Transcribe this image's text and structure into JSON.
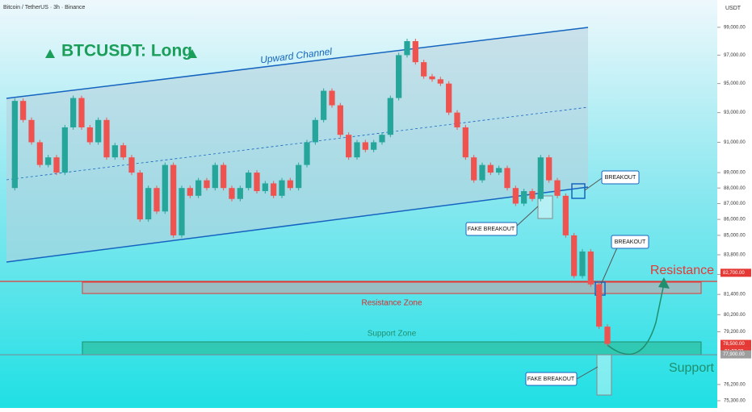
{
  "chart_data": {
    "type": "candle",
    "header": "Bitcoin / TetherUS · 3h · Binance",
    "currency": "USDT",
    "title": "BTCUSDT: Long",
    "annotations": {
      "channel": "Upward Channel",
      "breakout_1": "BREAKOUT",
      "breakout_2": "BREAKOUT",
      "fake_breakout_1": "FAKE BREAKOUT",
      "fake_breakout_2": "FAKE BREAKOUT",
      "resistance_zone": "Resistance Zone",
      "support_zone": "Support Zone",
      "resistance": "Resistance",
      "support": "Support"
    },
    "log_scale": true,
    "up_color": "#26a69a",
    "down_color": "#ef5350",
    "values": [
      88000,
      93800,
      92500,
      91000,
      89500,
      90000,
      89000,
      92000,
      94000,
      92000,
      91000,
      92500,
      90000,
      90800,
      90000,
      89000,
      86000,
      88000,
      86500,
      89500,
      85000,
      88000,
      87500,
      88500,
      88000,
      89500,
      88000,
      87300,
      88000,
      89000,
      87800,
      88300,
      87500,
      88500,
      88000,
      89500,
      91000,
      92500,
      94500,
      93500,
      91500,
      90000,
      91000,
      90500,
      91000,
      91500,
      94000,
      97000,
      98000,
      96500,
      95500,
      95300,
      95000,
      93000,
      92000,
      90000,
      88500,
      89500,
      89000,
      89300,
      88000,
      87000,
      87800,
      87300,
      90000,
      88500,
      87500,
      85000,
      82500,
      84000,
      82000,
      79500,
      78500
    ],
    "ylim": [
      74900,
      101000
    ],
    "yticks": [
      {
        "value": 99000,
        "label": "99,000.00"
      },
      {
        "value": 97000,
        "label": "97,000.00"
      },
      {
        "value": 95000,
        "label": "95,000.00"
      },
      {
        "value": 93000,
        "label": "93,000.00"
      },
      {
        "value": 91000,
        "label": "91,000.00"
      },
      {
        "value": 89000,
        "label": "89,000.00"
      },
      {
        "value": 88000,
        "label": "88,000.00"
      },
      {
        "value": 87000,
        "label": "87,000.00"
      },
      {
        "value": 86000,
        "label": "86,000.00"
      },
      {
        "value": 85000,
        "label": "85,000.00"
      },
      {
        "value": 83800,
        "label": "83,800.00"
      },
      {
        "value": 82600,
        "label": "82,600.00"
      },
      {
        "value": 81400,
        "label": "81,400.00"
      },
      {
        "value": 80200,
        "label": "80,200.00"
      },
      {
        "value": 79200,
        "label": "79,200.00"
      },
      {
        "value": 76200,
        "label": "76,200.00"
      },
      {
        "value": 75300,
        "label": "75,300.00"
      }
    ],
    "price_labels": [
      {
        "value": 82700,
        "label": "82,700.00",
        "color": "#e53935"
      },
      {
        "value": 78500,
        "label": "78,500.00",
        "color": "#e53935"
      },
      {
        "value": 77900,
        "label": "77,900.00",
        "color": "#9e9e9e"
      }
    ],
    "countdown": "01:07:33"
  }
}
